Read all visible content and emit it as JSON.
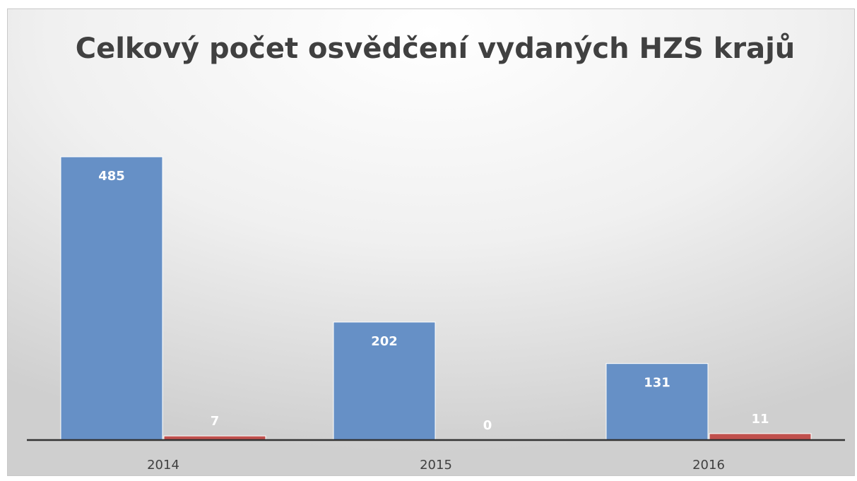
{
  "chart_data": {
    "type": "bar",
    "title": "Celkový počet osvědčení vydaných HZS krajů",
    "categories": [
      "2014",
      "2015",
      "2016"
    ],
    "series": [
      {
        "color": "#6690c6",
        "values": [
          485,
          202,
          131
        ]
      },
      {
        "color": "#c0504d",
        "values": [
          7,
          0,
          11
        ]
      }
    ]
  }
}
